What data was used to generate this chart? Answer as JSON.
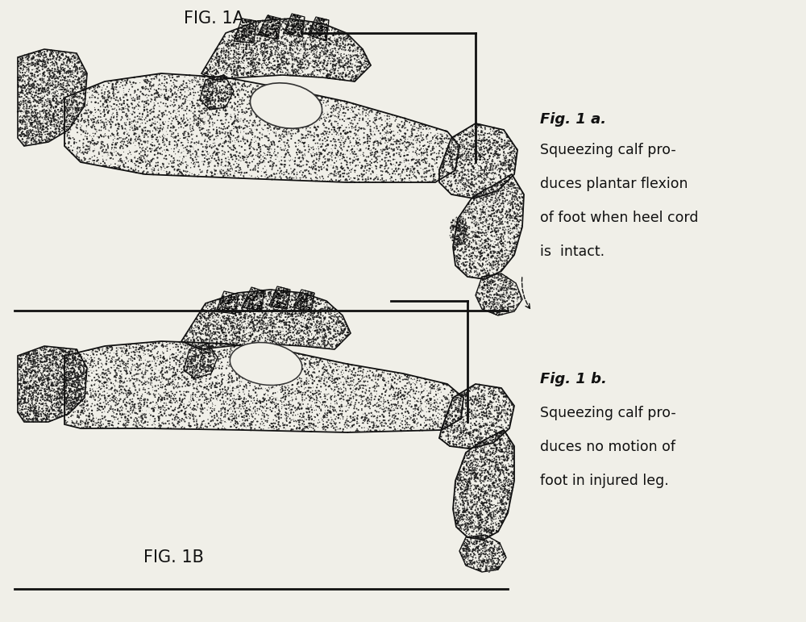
{
  "bg_color": "#f0efe8",
  "fig_width": 10.0,
  "fig_height": 7.71,
  "title_1a": "FIG. 1A",
  "title_1b": "FIG. 1B",
  "caption_1a_title": "Fig. 1 a.",
  "caption_1a_lines": [
    "Squeezing calf pro-",
    "duces plantar flexion",
    "of foot when heel cord",
    "is  intact."
  ],
  "caption_1b_title": "Fig. 1 b.",
  "caption_1b_lines": [
    "Squeezing calf pro-",
    "duces no motion of",
    "foot in injured leg."
  ],
  "text_color": "#111111",
  "line_color": "#111111"
}
